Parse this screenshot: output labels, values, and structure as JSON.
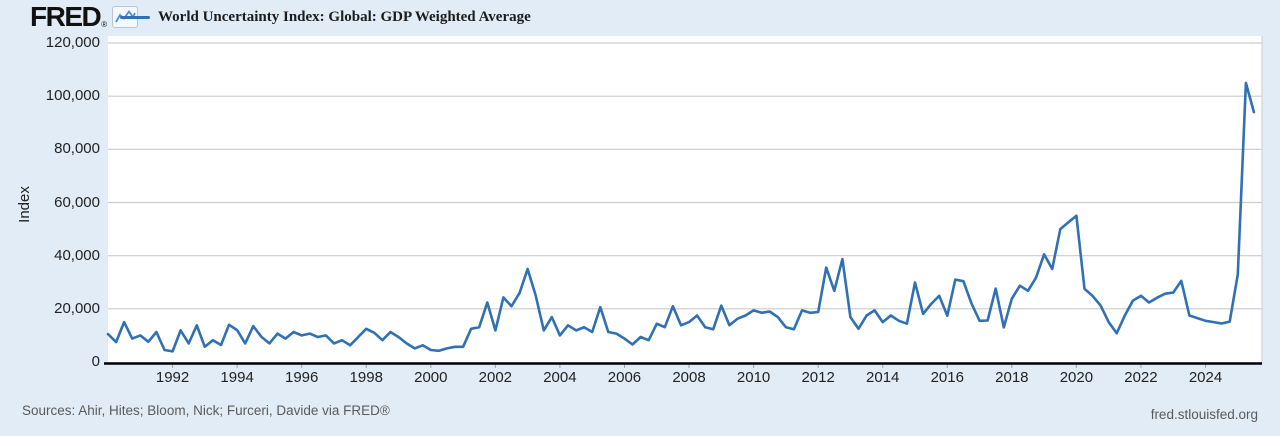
{
  "header": {
    "logo_text": "FRED",
    "logo_registered": "®",
    "legend_label": "World Uncertainty Index: Global: GDP Weighted Average"
  },
  "footer": {
    "sources": "Sources: Ahir, Hites; Bloom, Nick; Furceri, Davide via FRED®",
    "site": "fred.stlouisfed.org"
  },
  "chart_data": {
    "type": "line",
    "title": "World Uncertainty Index: Global: GDP Weighted Average",
    "ylabel": "Index",
    "line_color": "#3070b3",
    "grid_color": "#cccccc",
    "axis_color": "#000000",
    "plot_background": "#ffffff",
    "page_background": "#e2ecf7",
    "legend_position": "top-left",
    "grid": true,
    "ylim": [
      0,
      120000
    ],
    "y_ticks": [
      0,
      20000,
      40000,
      60000,
      80000,
      100000,
      120000
    ],
    "x_range_years": [
      1990.0,
      2025.75
    ],
    "x_tick_years": [
      1992,
      1994,
      1996,
      1998,
      2000,
      2002,
      2004,
      2006,
      2008,
      2010,
      2012,
      2014,
      2016,
      2018,
      2020,
      2022,
      2024
    ],
    "frequency": "quarterly",
    "first_period": "1990 Q1",
    "last_period": "2025 Q3",
    "values": [
      10500,
      7500,
      15000,
      8800,
      10000,
      7600,
      11300,
      4500,
      4000,
      11900,
      7000,
      13800,
      5700,
      8200,
      6400,
      14000,
      12000,
      7000,
      13500,
      9500,
      7000,
      10700,
      8800,
      11300,
      10000,
      10700,
      9400,
      10000,
      7000,
      8200,
      6300,
      9400,
      12500,
      11000,
      8200,
      11300,
      9400,
      7000,
      5100,
      6300,
      4500,
      4200,
      5100,
      5700,
      5700,
      12500,
      13100,
      22400,
      11900,
      24300,
      21000,
      26000,
      35000,
      25000,
      11900,
      16900,
      10000,
      13800,
      11900,
      13100,
      11300,
      20600,
      11300,
      10700,
      8800,
      6600,
      9400,
      8200,
      14400,
      13100,
      21000,
      13800,
      15000,
      17500,
      13100,
      12300,
      21200,
      13800,
      16300,
      17500,
      19400,
      18500,
      19000,
      16900,
      13100,
      12300,
      19400,
      18500,
      18800,
      35500,
      26800,
      38700,
      16900,
      12500,
      17500,
      19400,
      15000,
      17500,
      15500,
      14400,
      29900,
      18100,
      21800,
      24900,
      17400,
      31000,
      30400,
      22000,
      15500,
      15600,
      27600,
      13000,
      23800,
      28700,
      26800,
      31700,
      40500,
      35000,
      50000,
      52500,
      55000,
      27500,
      24900,
      21200,
      15000,
      10800,
      17500,
      23100,
      24900,
      22400,
      24200,
      25700,
      26100,
      30500,
      17500,
      16500,
      15500,
      15000,
      14500,
      15200,
      33000,
      105000,
      94000
    ]
  }
}
